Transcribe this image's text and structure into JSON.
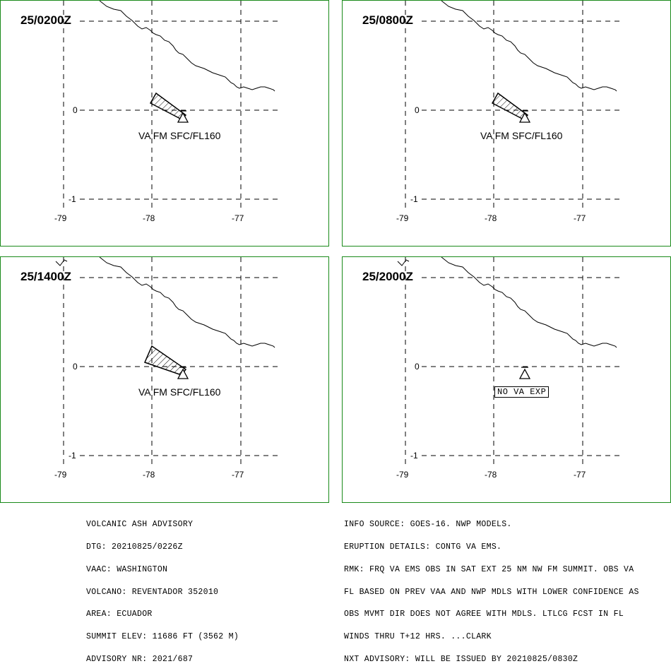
{
  "panels": [
    {
      "time": "25/0200Z",
      "label": "VA FM SFC/FL160",
      "label_type": "text"
    },
    {
      "time": "25/0800Z",
      "label": "VA FM SFC/FL160",
      "label_type": "text"
    },
    {
      "time": "25/1400Z",
      "label": "VA FM SFC/FL160",
      "label_type": "text"
    },
    {
      "time": "25/2000Z",
      "label": "NO VA EXP",
      "label_type": "box"
    }
  ],
  "axes": {
    "lon_ticks": [
      "-79",
      "-78",
      "-77"
    ],
    "lat_ticks": [
      "0",
      "-1"
    ]
  },
  "advisory_left": [
    "VOLCANIC ASH ADVISORY",
    "DTG: 20210825/0226Z",
    "VAAC: WASHINGTON",
    "VOLCANO: REVENTADOR 352010",
    "AREA: ECUADOR",
    "SUMMIT ELEV: 11686 FT (3562 M)",
    "ADVISORY NR: 2021/687"
  ],
  "advisory_right": [
    "INFO SOURCE: GOES-16. NWP MODELS.",
    "ERUPTION DETAILS: CONTG VA EMS.",
    "RMK: FRQ VA EMS OBS IN SAT EXT 25 NM NW FM SUMMIT. OBS VA",
    "FL BASED ON PREV VAA AND NWP MDLS WITH LOWER CONFIDENCE AS",
    "OBS MVMT DIR DOES NOT AGREE WITH MDLS. LTLCG FCST IN FL",
    "WINDS THRU T+12 HRS. ...CLARK",
    "NXT ADVISORY: WILL BE ISSUED BY 20210825/0830Z"
  ],
  "colors": {
    "frame": "#1a8a1a",
    "ink": "#000000",
    "background": "#ffffff"
  }
}
